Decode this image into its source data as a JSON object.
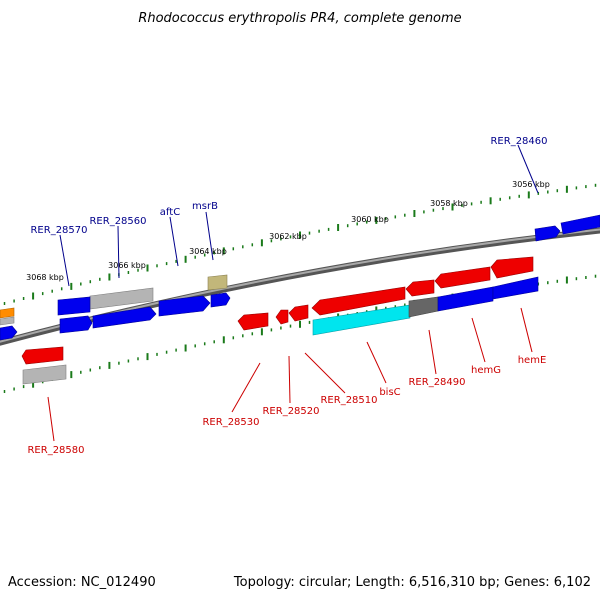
{
  "title": "Rhodococcus erythropolis PR4, complete genome",
  "footer": {
    "accession": "Accession: NC_012490",
    "summary": "Topology: circular; Length: 6,516,310 bp; Genes: 6,102"
  },
  "colors": {
    "forward_label": "#00008b",
    "reverse_label": "#cc0000",
    "backbone": "#808080",
    "tick": "#1a7a1a",
    "blue": "#0000ee",
    "red": "#ee0000",
    "gray": "#b4b4b4",
    "dark_gray": "#666666",
    "cyan": "#00e5ee",
    "olive": "#c2b77a",
    "orange": "#ff8c00"
  },
  "kbp_ticks": [
    "3056 kbp",
    "3058 kbp",
    "3060 kbp",
    "3062 kbp",
    "3064 kbp",
    "3066 kbp",
    "3068 kbp"
  ],
  "forward_labels": [
    "RER_28460",
    "msrB",
    "aftC",
    "RER_28560",
    "RER_28570"
  ],
  "reverse_labels": [
    "hemE",
    "hemG",
    "RER_28490",
    "bisC",
    "RER_28510",
    "RER_28520",
    "RER_28530",
    "RER_28580"
  ]
}
